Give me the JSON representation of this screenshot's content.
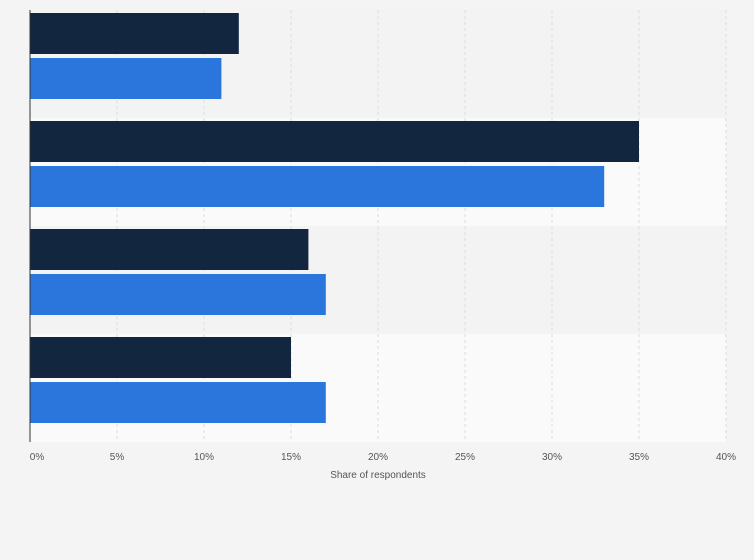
{
  "chart_data": {
    "type": "bar",
    "orientation": "horizontal",
    "categories": [
      "",
      "",
      "",
      ""
    ],
    "series": [
      {
        "values": [
          12,
          35,
          16,
          15
        ],
        "color": "#12263f"
      },
      {
        "values": [
          11,
          33,
          17,
          17
        ],
        "color": "#2a76dd"
      }
    ],
    "xlabel": "Share of respondents",
    "ylabel": "",
    "xlim": [
      0,
      40
    ],
    "xticks": [
      0,
      5,
      10,
      15,
      20,
      25,
      30,
      35,
      40
    ],
    "xtick_labels": [
      "0%",
      "5%",
      "10%",
      "15%",
      "20%",
      "25%",
      "30%",
      "35%",
      "40%"
    ],
    "grid": true,
    "legend": "none"
  }
}
